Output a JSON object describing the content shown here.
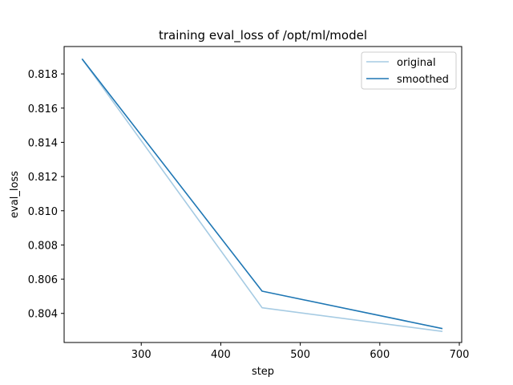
{
  "chart_data": {
    "type": "line",
    "title": "training eval_loss of /opt/ml/model",
    "xlabel": "step",
    "ylabel": "eval_loss",
    "xlim": [
      203,
      703
    ],
    "ylim": [
      0.8023,
      0.8196
    ],
    "xticks": [
      300,
      400,
      500,
      600,
      700
    ],
    "xtick_labels": [
      "300",
      "400",
      "500",
      "600",
      "700"
    ],
    "yticks": [
      0.804,
      0.806,
      0.808,
      0.81,
      0.812,
      0.814,
      0.816,
      0.818
    ],
    "ytick_labels": [
      "0.804",
      "0.806",
      "0.808",
      "0.810",
      "0.812",
      "0.814",
      "0.816",
      "0.818"
    ],
    "grid": false,
    "legend_position": "upper-right",
    "series": [
      {
        "name": "original",
        "color": "#a6cbe3",
        "x": [
          226,
          452,
          678
        ],
        "y": [
          0.81885,
          0.80433,
          0.80295
        ]
      },
      {
        "name": "smoothed",
        "color": "#1f77b4",
        "x": [
          226,
          452,
          678
        ],
        "y": [
          0.81885,
          0.8053,
          0.80312
        ]
      }
    ]
  }
}
